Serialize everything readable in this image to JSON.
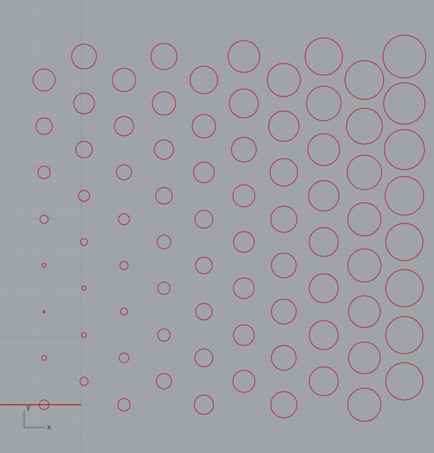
{
  "viewport": {
    "axis_labels": {
      "y": "y",
      "x": "x"
    }
  }
}
